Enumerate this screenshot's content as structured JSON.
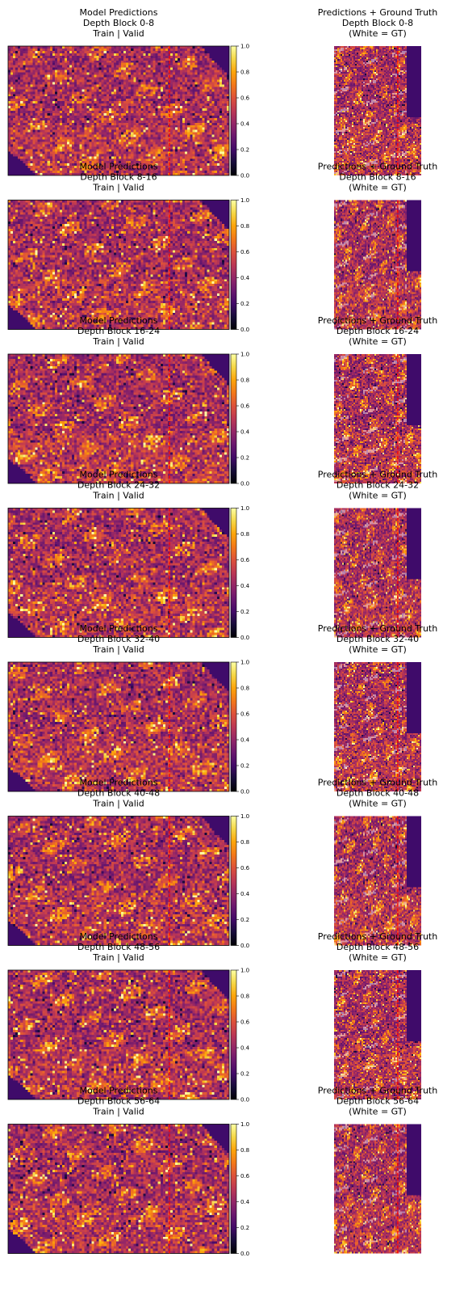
{
  "figure": {
    "left_title_lines": [
      "Model Predictions",
      "Train | Valid"
    ],
    "right_title_lines": [
      "Predictions + Ground Truth",
      "(White = GT)"
    ],
    "depth_label_prefix": "Depth Block ",
    "colormap": "inferno",
    "split_line_color": "#ff0000",
    "gt_color": "#ffffff",
    "background_color": "#3f0b6a"
  },
  "chart_data": {
    "type": "heatmap",
    "panels": [
      {
        "depth_block": "0-8"
      },
      {
        "depth_block": "8-16"
      },
      {
        "depth_block": "16-24"
      },
      {
        "depth_block": "24-32"
      },
      {
        "depth_block": "32-40"
      },
      {
        "depth_block": "40-48"
      },
      {
        "depth_block": "48-56"
      },
      {
        "depth_block": "56-64"
      }
    ],
    "colorbar": {
      "range": [
        0,
        1
      ],
      "ticks": [
        "0.0",
        "0.2",
        "0.4",
        "0.6",
        "0.8",
        "1.0"
      ]
    },
    "train_valid_split_fraction": 0.73
  }
}
